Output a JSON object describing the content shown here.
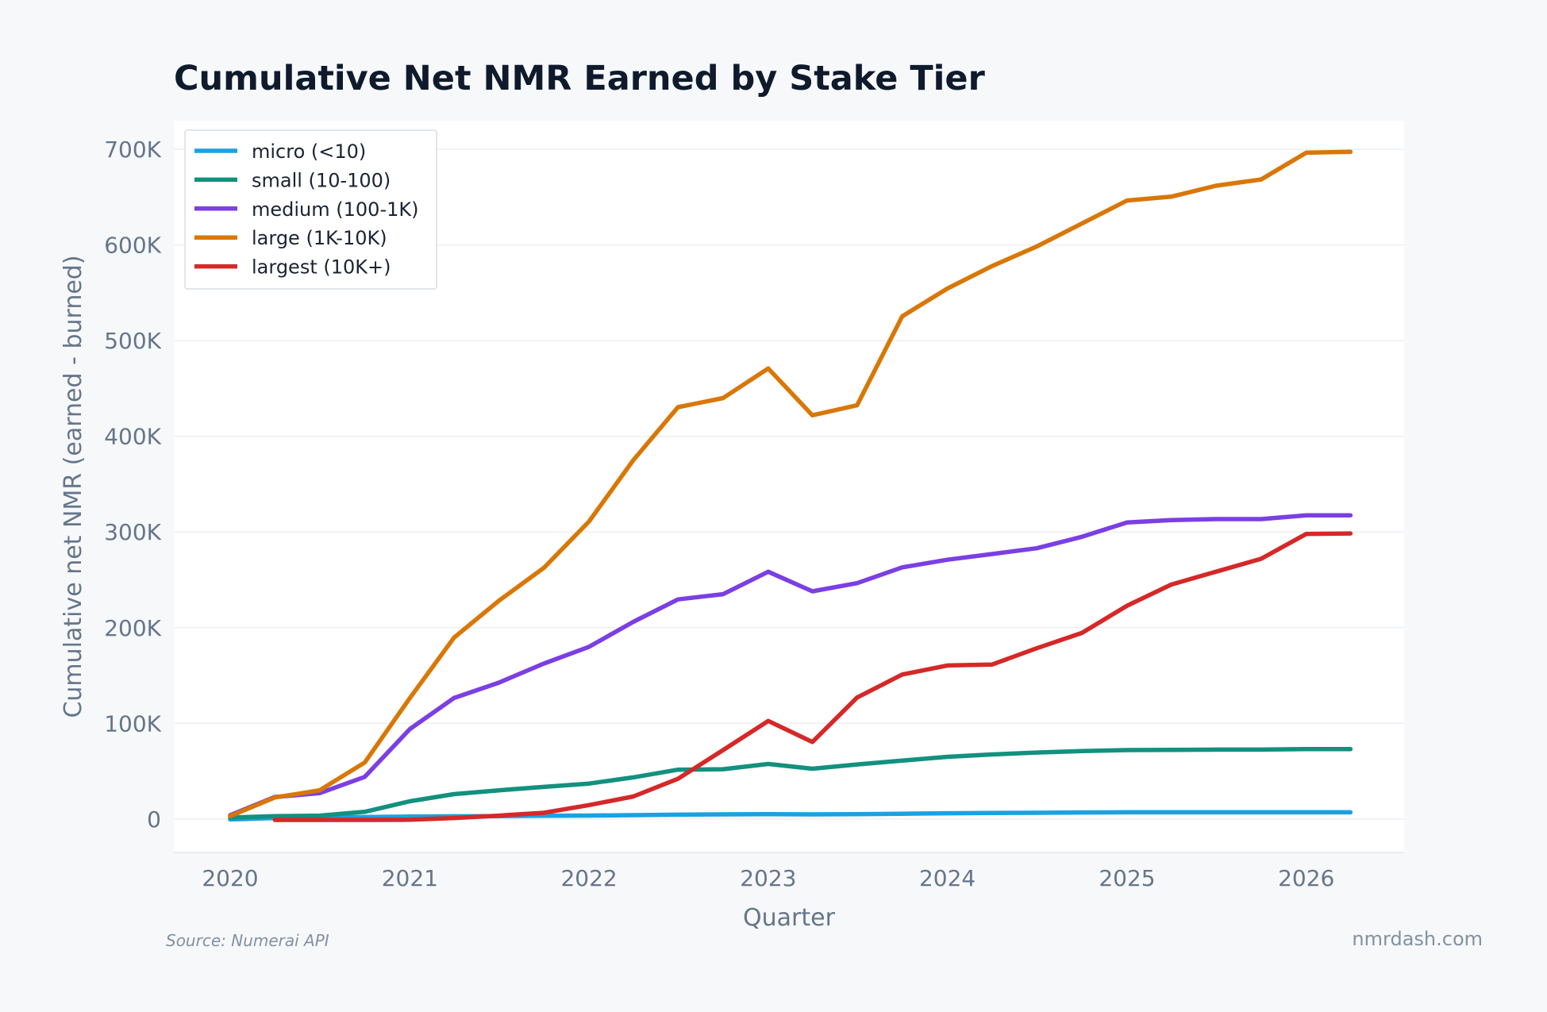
{
  "chart_data": {
    "type": "line",
    "title": "Cumulative Net NMR Earned by Stake Tier",
    "xlabel": "Quarter",
    "ylabel": "Cumulative net NMR (earned - burned)",
    "x": [
      "2020-01-01",
      "2020-04-01",
      "2020-07-01",
      "2020-10-01",
      "2021-01-01",
      "2021-04-01",
      "2021-07-01",
      "2021-10-01",
      "2022-01-01",
      "2022-04-01",
      "2022-07-01",
      "2022-10-01",
      "2023-01-01",
      "2023-04-01",
      "2023-07-01",
      "2023-10-01",
      "2024-01-01",
      "2024-04-01",
      "2024-07-01",
      "2024-10-01",
      "2025-01-01",
      "2025-04-01",
      "2025-07-01",
      "2025-10-01",
      "2026-01-01",
      "2026-04-01"
    ],
    "x_ticks": [
      "2020",
      "2021",
      "2022",
      "2023",
      "2024",
      "2025",
      "2026"
    ],
    "y_ticks": [
      "0",
      "100K",
      "200K",
      "300K",
      "400K",
      "500K",
      "600K",
      "700K"
    ],
    "ylim": [
      -35000,
      730000
    ],
    "grid": true,
    "legend_position": "top-left",
    "series": [
      {
        "name": "micro (<10)",
        "color": "#1ba1e2",
        "values": [
          -500,
          1000,
          1500,
          2000,
          2500,
          2800,
          3000,
          3300,
          3600,
          4000,
          4500,
          4800,
          5000,
          4800,
          5000,
          5500,
          6000,
          6300,
          6500,
          6800,
          7000,
          7000,
          7000,
          7000,
          7000,
          7000
        ]
      },
      {
        "name": "small (10-100)",
        "color": "#12917e",
        "values": [
          1500,
          3000,
          3500,
          7500,
          18500,
          26000,
          30000,
          33500,
          37000,
          43500,
          51500,
          52000,
          57500,
          52500,
          57000,
          61000,
          65000,
          67500,
          69500,
          71000,
          72000,
          72200,
          72500,
          72500,
          73000,
          73000
        ]
      },
      {
        "name": "medium (100-1K)",
        "color": "#7b3fe4",
        "values": [
          4000,
          23000,
          27000,
          44000,
          94000,
          126500,
          142500,
          162500,
          180000,
          206000,
          229500,
          235000,
          258500,
          238000,
          246500,
          263000,
          271000,
          277000,
          283000,
          295000,
          310000,
          312500,
          313500,
          313500,
          317500,
          317500
        ]
      },
      {
        "name": "large (1K-10K)",
        "color": "#d97706",
        "values": [
          3000,
          22500,
          30000,
          59000,
          126500,
          189500,
          228000,
          262500,
          311000,
          375000,
          430500,
          440000,
          471000,
          422000,
          432500,
          525500,
          554500,
          578000,
          598500,
          622500,
          646500,
          650500,
          662000,
          668500,
          696500,
          697500
        ]
      },
      {
        "name": "largest (10K+)",
        "color": "#d62828",
        "values": [
          null,
          -1000,
          -1000,
          -1000,
          -800,
          1000,
          3500,
          6500,
          14500,
          23500,
          42000,
          72000,
          102500,
          80500,
          127000,
          151000,
          160500,
          161500,
          178500,
          194500,
          223000,
          245000,
          258500,
          272000,
          298000,
          298500
        ]
      }
    ]
  },
  "footer": {
    "source": "Source: Numerai API",
    "brand": "nmrdash.com"
  }
}
